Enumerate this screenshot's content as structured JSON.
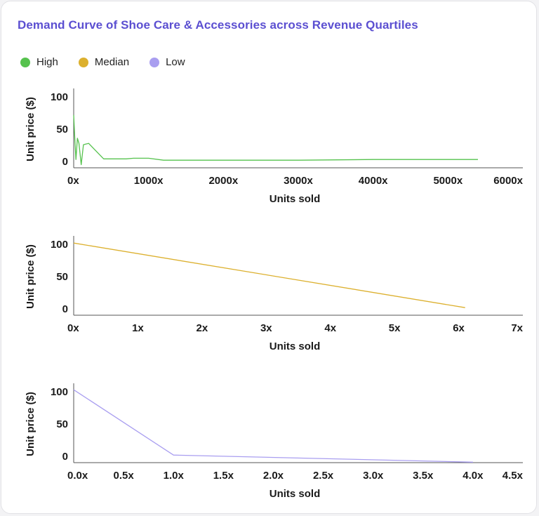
{
  "title": "Demand Curve of Shoe Care & Accessories across Revenue Quartiles",
  "legend": [
    {
      "label": "High",
      "color": "#56c24e"
    },
    {
      "label": "Median",
      "color": "#dcb02e"
    },
    {
      "label": "Low",
      "color": "#a99ef0"
    }
  ],
  "chart_data": [
    {
      "type": "line",
      "series_name": "High",
      "color": "#56c24e",
      "xlabel": "Units sold",
      "ylabel": "Unit price ($)",
      "xlim": [
        0,
        6000
      ],
      "ylim": [
        0,
        100
      ],
      "xticks": [
        0,
        1000,
        2000,
        3000,
        4000,
        5000,
        6000
      ],
      "xtick_labels": [
        "0x",
        "1000x",
        "2000x",
        "3000x",
        "4000x",
        "5000x",
        "6000x"
      ],
      "yticks": [
        0,
        50,
        100
      ],
      "ytick_labels": [
        "0",
        "50",
        "100"
      ],
      "x": [
        0,
        15,
        30,
        50,
        70,
        100,
        130,
        160,
        200,
        400,
        700,
        800,
        1000,
        1200,
        2000,
        3000,
        4000,
        5000,
        5400
      ],
      "y": [
        72,
        35,
        3,
        36,
        28,
        -5,
        26,
        27,
        28,
        4,
        4,
        5,
        5,
        2,
        2,
        2,
        3,
        3,
        3
      ]
    },
    {
      "type": "line",
      "series_name": "Median",
      "color": "#dcb02e",
      "xlabel": "Units sold",
      "ylabel": "Unit price ($)",
      "xlim": [
        0,
        7
      ],
      "ylim": [
        0,
        100
      ],
      "xticks": [
        0,
        1,
        2,
        3,
        4,
        5,
        6,
        7
      ],
      "xtick_labels": [
        "0x",
        "1x",
        "2x",
        "3x",
        "4x",
        "5x",
        "6x",
        "7x"
      ],
      "yticks": [
        0,
        50,
        100
      ],
      "ytick_labels": [
        "0",
        "50",
        "100"
      ],
      "x": [
        0,
        6.1
      ],
      "y": [
        102,
        2
      ]
    },
    {
      "type": "line",
      "series_name": "Low",
      "color": "#a99ef0",
      "xlabel": "Units sold",
      "ylabel": "Unit price ($)",
      "xlim": [
        0,
        4.5
      ],
      "ylim": [
        0,
        100
      ],
      "xticks": [
        0,
        0.5,
        1,
        1.5,
        2,
        2.5,
        3,
        3.5,
        4,
        4.5
      ],
      "xtick_labels": [
        "0.0x",
        "0.5x",
        "1.0x",
        "1.5x",
        "2.0x",
        "2.5x",
        "3.0x",
        "3.5x",
        "4.0x",
        "4.5x"
      ],
      "yticks": [
        0,
        50,
        100
      ],
      "ytick_labels": [
        "0",
        "50",
        "100"
      ],
      "x": [
        0,
        1,
        4
      ],
      "y": [
        103,
        2,
        -9
      ]
    }
  ]
}
